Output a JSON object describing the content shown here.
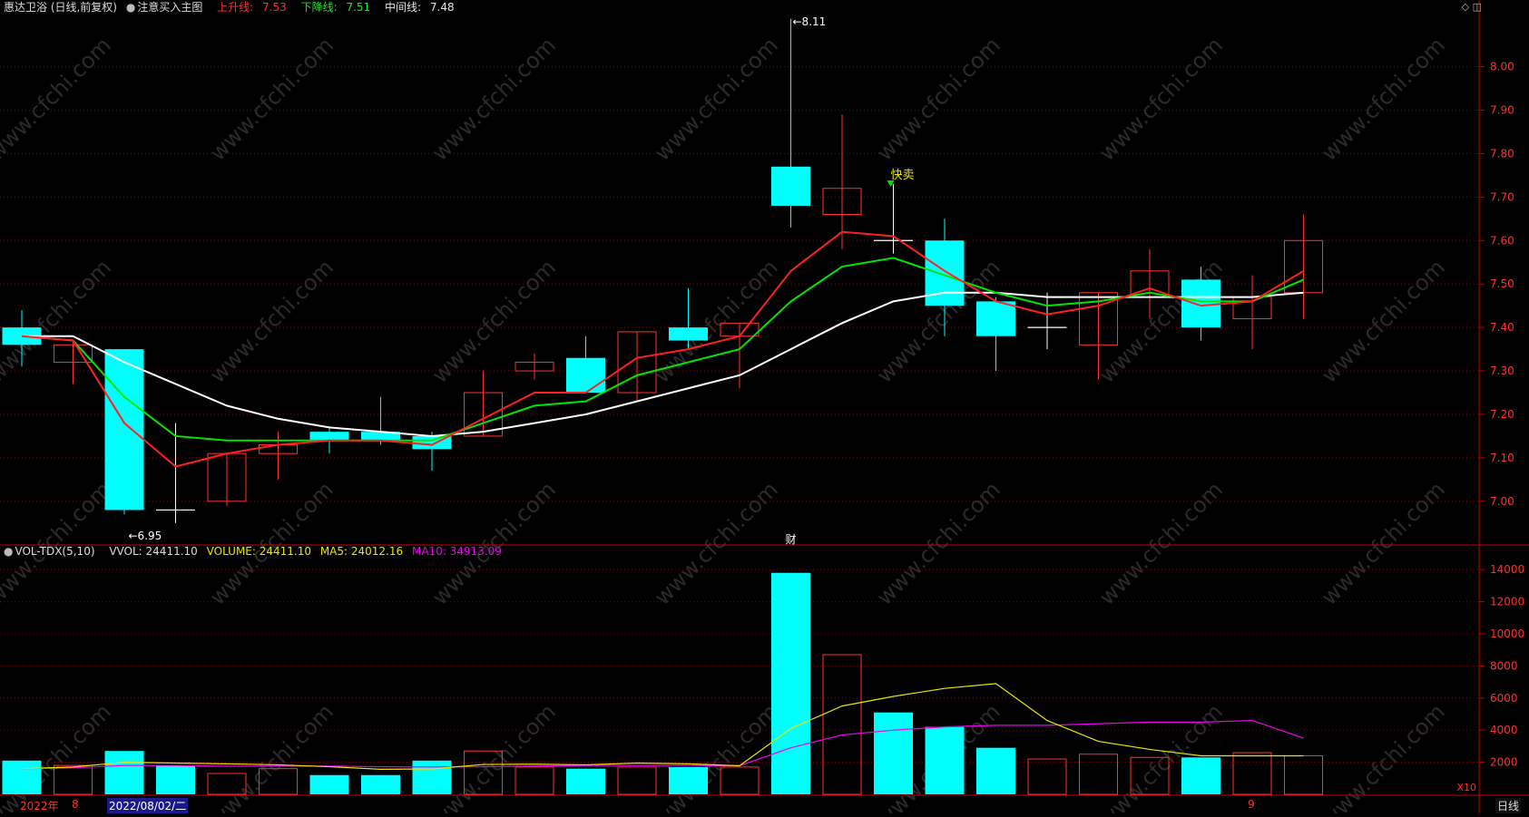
{
  "header": {
    "stock": "惠达卫浴 (日线,前复权)",
    "indicator": "注意买入主图",
    "upper_label": "上升线:",
    "upper_value": "7.53",
    "lower_label": "下降线:",
    "lower_value": "7.51",
    "mid_label": "中间线:",
    "mid_value": "7.48"
  },
  "volume_header": {
    "name": "VOL-TDX(5,10)",
    "vvol": "VVOL: 24411.10",
    "volume": "VOLUME: 24411.10",
    "ma5": "MA5: 24012.16",
    "ma10": "MA10: 34913.09"
  },
  "top_icons": "◇ ◫",
  "chart_data": [
    {
      "type": "candlestick",
      "ylim": [
        6.91,
        8.12
      ],
      "y_ticks": [
        "7.00",
        "7.10",
        "7.20",
        "7.30",
        "7.40",
        "7.50",
        "7.60",
        "7.70",
        "7.80",
        "7.90",
        "8.00"
      ],
      "candles": [
        {
          "o": 7.36,
          "h": 7.44,
          "l": 7.31,
          "c": 7.4,
          "trend": "down"
        },
        {
          "o": 7.36,
          "h": 7.37,
          "l": 7.27,
          "c": 7.32,
          "trend": "up"
        },
        {
          "o": 7.35,
          "h": 7.35,
          "l": 6.97,
          "c": 6.98,
          "trend": "down"
        },
        {
          "o": 6.98,
          "h": 7.18,
          "l": 6.95,
          "c": 6.98,
          "trend": "flat"
        },
        {
          "o": 7.0,
          "h": 7.11,
          "l": 6.99,
          "c": 7.11,
          "trend": "up"
        },
        {
          "o": 7.11,
          "h": 7.16,
          "l": 7.05,
          "c": 7.13,
          "trend": "up"
        },
        {
          "o": 7.16,
          "h": 7.17,
          "l": 7.11,
          "c": 7.14,
          "trend": "down"
        },
        {
          "o": 7.16,
          "h": 7.24,
          "l": 7.13,
          "c": 7.14,
          "trend": "down"
        },
        {
          "o": 7.15,
          "h": 7.16,
          "l": 7.07,
          "c": 7.12,
          "trend": "down"
        },
        {
          "o": 7.15,
          "h": 7.3,
          "l": 7.15,
          "c": 7.25,
          "trend": "up"
        },
        {
          "o": 7.3,
          "h": 7.34,
          "l": 7.28,
          "c": 7.32,
          "trend": "up"
        },
        {
          "o": 7.33,
          "h": 7.38,
          "l": 7.25,
          "c": 7.25,
          "trend": "down"
        },
        {
          "o": 7.25,
          "h": 7.39,
          "l": 7.23,
          "c": 7.39,
          "trend": "up"
        },
        {
          "o": 7.4,
          "h": 7.49,
          "l": 7.35,
          "c": 7.37,
          "trend": "down"
        },
        {
          "o": 7.38,
          "h": 7.41,
          "l": 7.26,
          "c": 7.41,
          "trend": "up"
        },
        {
          "o": 7.77,
          "h": 8.11,
          "l": 7.63,
          "c": 7.68,
          "trend": "down"
        },
        {
          "o": 7.66,
          "h": 7.89,
          "l": 7.58,
          "c": 7.72,
          "trend": "up"
        },
        {
          "o": 7.6,
          "h": 7.73,
          "l": 7.57,
          "c": 7.6,
          "trend": "flat"
        },
        {
          "o": 7.6,
          "h": 7.65,
          "l": 7.38,
          "c": 7.45,
          "trend": "down"
        },
        {
          "o": 7.46,
          "h": 7.47,
          "l": 7.3,
          "c": 7.38,
          "trend": "down"
        },
        {
          "o": 7.4,
          "h": 7.48,
          "l": 7.35,
          "c": 7.4,
          "trend": "flat"
        },
        {
          "o": 7.36,
          "h": 7.48,
          "l": 7.28,
          "c": 7.48,
          "trend": "up"
        },
        {
          "o": 7.47,
          "h": 7.58,
          "l": 7.42,
          "c": 7.53,
          "trend": "up"
        },
        {
          "o": 7.51,
          "h": 7.54,
          "l": 7.37,
          "c": 7.4,
          "trend": "down"
        },
        {
          "o": 7.42,
          "h": 7.52,
          "l": 7.35,
          "c": 7.47,
          "trend": "up"
        },
        {
          "o": 7.48,
          "h": 7.66,
          "l": 7.42,
          "c": 7.6,
          "trend": "up"
        }
      ],
      "series": [
        {
          "name": "上升线",
          "color": "#ff2020",
          "values": [
            7.38,
            7.37,
            7.18,
            7.08,
            7.11,
            7.13,
            7.14,
            7.14,
            7.13,
            7.19,
            7.25,
            7.25,
            7.33,
            7.35,
            7.38,
            7.53,
            7.62,
            7.61,
            7.53,
            7.46,
            7.43,
            7.45,
            7.49,
            7.45,
            7.46,
            7.53
          ]
        },
        {
          "name": "下降线",
          "color": "#00e600",
          "values": [
            7.38,
            7.37,
            7.24,
            7.15,
            7.14,
            7.14,
            7.14,
            7.14,
            7.14,
            7.18,
            7.22,
            7.23,
            7.29,
            7.32,
            7.35,
            7.46,
            7.54,
            7.56,
            7.52,
            7.48,
            7.45,
            7.46,
            7.48,
            7.46,
            7.46,
            7.51
          ]
        },
        {
          "name": "中间线",
          "color": "#ffffff",
          "values": [
            7.38,
            7.38,
            7.32,
            7.27,
            7.22,
            7.19,
            7.17,
            7.16,
            7.15,
            7.16,
            7.18,
            7.2,
            7.23,
            7.26,
            7.29,
            7.35,
            7.41,
            7.46,
            7.48,
            7.48,
            7.47,
            7.47,
            7.47,
            7.47,
            7.47,
            7.48
          ]
        }
      ],
      "annotations": {
        "high_label": "8.11",
        "low_label": "6.95",
        "signal_text": "快卖",
        "marker_text": "财"
      }
    },
    {
      "type": "bar",
      "ylim": [
        0,
        14800
      ],
      "y_ticks": [
        "2000",
        "4000",
        "6000",
        "8000",
        "10000",
        "12000",
        "14000"
      ],
      "values": [
        2100,
        1800,
        2700,
        1800,
        1300,
        1600,
        1200,
        1200,
        2100,
        2700,
        1700,
        1600,
        1700,
        1700,
        1700,
        13800,
        8700,
        5100,
        4200,
        2900,
        2200,
        2500,
        2300,
        2300,
        2600,
        2400
      ],
      "trend": [
        "down",
        "up",
        "down",
        "down",
        "up",
        "up",
        "down",
        "down",
        "down",
        "up",
        "up",
        "down",
        "up",
        "down",
        "up",
        "down",
        "up",
        "down",
        "down",
        "down",
        "up",
        "up",
        "up",
        "down",
        "up",
        "up"
      ],
      "series": [
        {
          "name": "MA5",
          "color": "#e8e800",
          "values": [
            1600,
            1700,
            2000,
            1950,
            1900,
            1840,
            1720,
            1560,
            1580,
            1860,
            1880,
            1840,
            1950,
            1900,
            1780,
            4100,
            5500,
            6100,
            6600,
            6900,
            4600,
            3300,
            2800,
            2400,
            2400,
            2400
          ]
        },
        {
          "name": "MA10",
          "color": "#ee00ee",
          "values": [
            1600,
            1650,
            1800,
            1800,
            1750,
            1760,
            1760,
            1720,
            1700,
            1720,
            1760,
            1800,
            1800,
            1800,
            1780,
            2900,
            3700,
            4000,
            4200,
            4300,
            4300,
            4400,
            4500,
            4500,
            4600,
            3500
          ]
        }
      ],
      "multiplier": "X10"
    }
  ],
  "x_axis": {
    "year": "2022年",
    "month_aug": "8",
    "date_label": "2022/08/02/二",
    "month_sep": "9"
  },
  "period": "日线",
  "watermark": "www.cfchi.com",
  "colors": {
    "up": "#ff3232",
    "down": "#00ffff",
    "grid": "#7a0000",
    "axis": "#c00000"
  }
}
